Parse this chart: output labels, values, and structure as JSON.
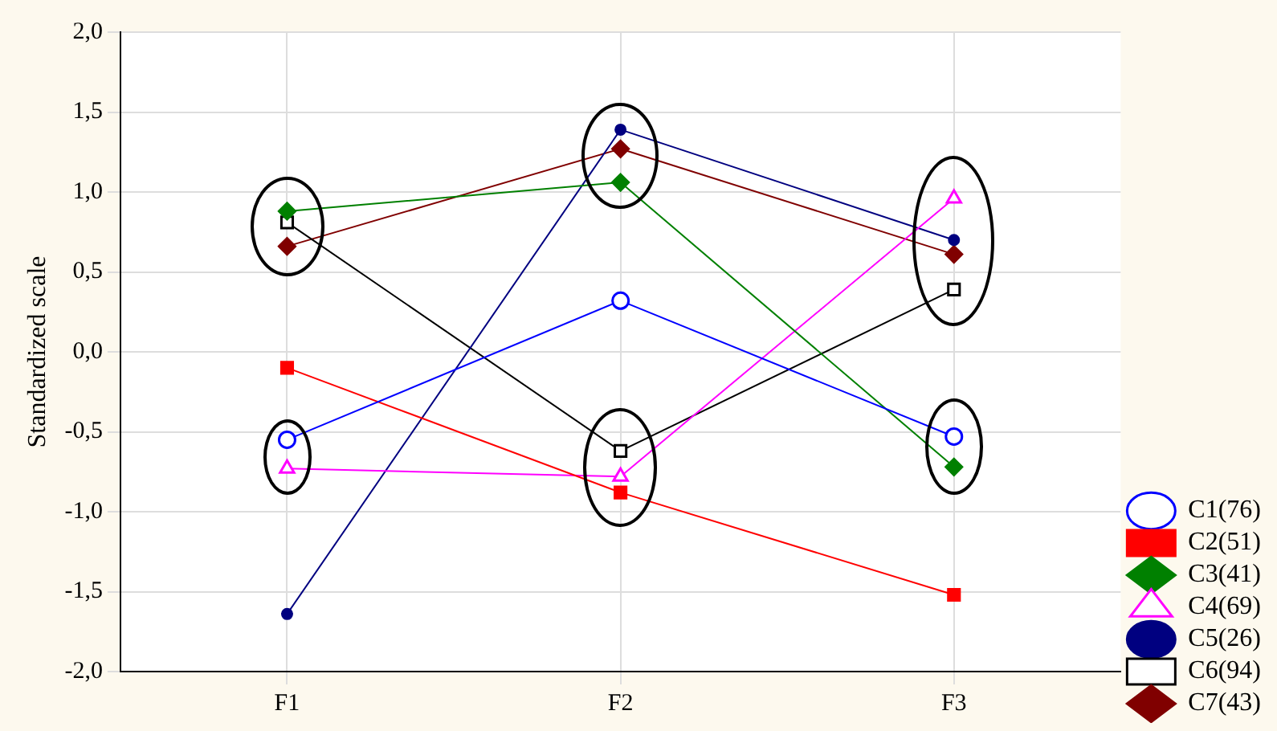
{
  "chart_data": {
    "type": "line",
    "ylabel": "Standardized scale",
    "categories": [
      "F1",
      "F2",
      "F3"
    ],
    "ylim": [
      -2,
      2
    ],
    "yticks": [
      {
        "value": -2,
        "label": "-2,0"
      },
      {
        "value": -1.5,
        "label": "-1,5"
      },
      {
        "value": -1,
        "label": "-1,0"
      },
      {
        "value": -0.5,
        "label": "-0,5"
      },
      {
        "value": 0,
        "label": "0,0"
      },
      {
        "value": 0.5,
        "label": "0,5"
      },
      {
        "value": 1,
        "label": "1,0"
      },
      {
        "value": 1.5,
        "label": "1,5"
      },
      {
        "value": 2,
        "label": "2,0"
      }
    ],
    "grid": true,
    "legend": "right",
    "line_style": "solid",
    "series": [
      {
        "name": "C1(76)",
        "color": "#0000ff",
        "marker": "circle",
        "values": [
          -0.55,
          0.32,
          -0.53
        ]
      },
      {
        "name": "C2(51)",
        "color": "#ff0000",
        "marker": "square",
        "values": [
          -0.1,
          -0.88,
          -1.52
        ]
      },
      {
        "name": "C3(41)",
        "color": "#008000",
        "marker": "diamond",
        "values": [
          0.88,
          1.06,
          -0.72
        ]
      },
      {
        "name": "C4(69)",
        "color": "#ff00ff",
        "marker": "triangle",
        "values": [
          -0.73,
          -0.78,
          0.96
        ]
      },
      {
        "name": "C5(26)",
        "color": "#000080",
        "marker": "circle",
        "values": [
          -1.64,
          1.39,
          0.7
        ]
      },
      {
        "name": "C6(94)",
        "color": "#000000",
        "marker": "square",
        "values": [
          0.81,
          -0.62,
          0.39
        ]
      },
      {
        "name": "C7(43)",
        "color": "#800000",
        "marker": "diamond",
        "values": [
          0.66,
          1.27,
          0.61
        ]
      }
    ]
  }
}
